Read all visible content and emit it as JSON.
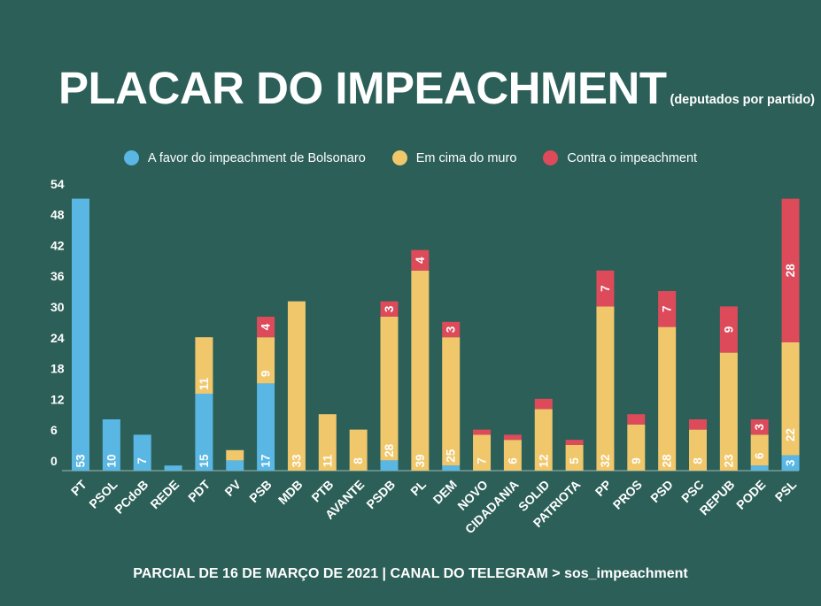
{
  "header": {
    "title": "PLACAR DO IMPEACHMENT",
    "subtitle": "(deputados por partido)"
  },
  "legend": [
    {
      "label": "A favor do impeachment de Bolsonaro",
      "color": "#5ab7e4"
    },
    {
      "label": "Em cima do muro",
      "color": "#f1c76c"
    },
    {
      "label": "Contra o impeachment",
      "color": "#dd4b5a"
    }
  ],
  "footer": {
    "text": "PARCIAL DE 16 DE MARÇO DE 2021 | CANAL DO TELEGRAM > sos_impeachment"
  },
  "chart_data": {
    "type": "bar",
    "stacked": true,
    "title": "PLACAR DO IMPEACHMENT",
    "xlabel": "",
    "ylabel": "",
    "ylim": [
      0,
      57
    ],
    "yticks": [
      0,
      6,
      12,
      18,
      24,
      30,
      36,
      42,
      48,
      54
    ],
    "categories": [
      "PT",
      "PSOL",
      "PCdoB",
      "REDE",
      "PDT",
      "PV",
      "PSB",
      "MDB",
      "PTB",
      "AVANTE",
      "PSDB",
      "PL",
      "DEM",
      "NOVO",
      "CIDADANIA",
      "SOLID",
      "PATRIOTA",
      "PP",
      "PROS",
      "PSD",
      "PSC",
      "REPUB",
      "PODE",
      "PSL"
    ],
    "series": [
      {
        "name": "A favor do impeachment de Bolsonaro",
        "color": "#5ab7e4",
        "values": [
          53,
          10,
          7,
          1,
          15,
          2,
          17,
          0,
          0,
          0,
          2,
          0,
          1,
          0,
          0,
          0,
          0,
          0,
          0,
          0,
          0,
          0,
          1,
          3
        ],
        "labels": [
          "53",
          "10",
          "7",
          "",
          "15",
          "",
          "17",
          "",
          "",
          "",
          "",
          "",
          "",
          "",
          "",
          "",
          "",
          "",
          "",
          "",
          "",
          "",
          "",
          "3"
        ]
      },
      {
        "name": "Em cima do muro",
        "color": "#f1c76c",
        "values": [
          0,
          0,
          0,
          0,
          11,
          2,
          9,
          33,
          11,
          8,
          28,
          39,
          25,
          7,
          6,
          12,
          5,
          32,
          9,
          28,
          8,
          23,
          6,
          22
        ],
        "labels": [
          "",
          "",
          "",
          "",
          "11",
          "",
          "9",
          "33",
          "11",
          "8",
          "28",
          "39",
          "25",
          "7",
          "6",
          "12",
          "5",
          "32",
          "9",
          "28",
          "8",
          "23",
          "6",
          "22"
        ]
      },
      {
        "name": "Contra o impeachment",
        "color": "#dd4b5a",
        "values": [
          0,
          0,
          0,
          0,
          0,
          0,
          4,
          0,
          0,
          0,
          3,
          4,
          3,
          1,
          1,
          2,
          1,
          7,
          2,
          7,
          2,
          9,
          3,
          28
        ],
        "labels": [
          "",
          "",
          "",
          "",
          "",
          "",
          "4",
          "",
          "",
          "",
          "3",
          "4",
          "3",
          "",
          "",
          "",
          "",
          "7",
          "",
          "7",
          "",
          "9",
          "3",
          "28"
        ]
      }
    ]
  }
}
